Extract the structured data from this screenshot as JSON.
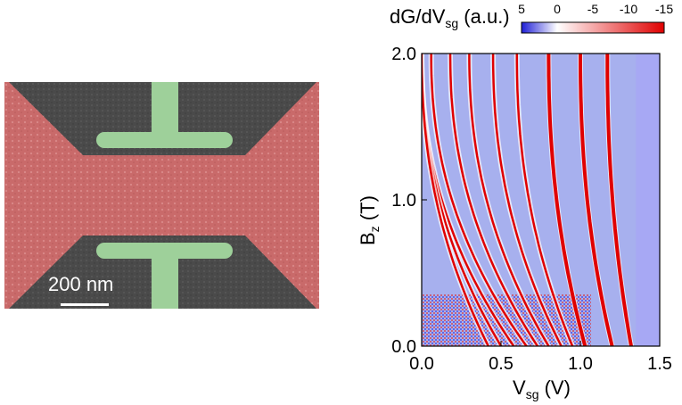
{
  "sem_panel": {
    "scale_bar_label": "200 nm",
    "colors": {
      "background": "#4a4a4a",
      "channel": "#c96a6a",
      "gates": "#9ed09a"
    }
  },
  "chart_data": {
    "type": "heatmap",
    "xlabel": {
      "main": "V",
      "sub": "sg",
      "unit": " (V)"
    },
    "ylabel": {
      "main": "B",
      "sub": "z",
      "unit": " (T)"
    },
    "xlim": [
      0.0,
      1.5
    ],
    "ylim": [
      0.0,
      2.0
    ],
    "x_ticks": [
      "0.0",
      "0.5",
      "1.0",
      "1.5"
    ],
    "y_ticks": [
      "0.0",
      "1.0",
      "2.0"
    ],
    "colorbar": {
      "title": {
        "main": "dG/dV",
        "sub": "sg",
        "unit": " (a.u.)"
      },
      "ticks": [
        "5",
        "0",
        "-5",
        "-10",
        "-15"
      ],
      "range": [
        5,
        -15
      ],
      "colors": {
        "positive": "#1f1fd6",
        "zero": "#ffffff",
        "negative": "#e00000"
      }
    },
    "background_color": "#a7b0ee",
    "plateau_color": "#a7a8f4",
    "plateau_x": 1.35,
    "transitions": [
      {
        "v0": 1.32,
        "vtop": 1.17
      },
      {
        "v0": 1.2,
        "vtop": 1.0
      },
      {
        "v0": 1.03,
        "vtop": 0.8
      },
      {
        "v0": 0.95,
        "vtop": 0.6
      },
      {
        "v0": 0.88,
        "vtop": 0.45
      },
      {
        "v0": 0.8,
        "vtop": 0.3
      },
      {
        "v0": 0.73,
        "vtop": 0.18
      },
      {
        "v0": 0.66,
        "vtop": 0.06
      },
      {
        "v0": 0.58,
        "vtop": 0.0
      },
      {
        "v0": 0.5,
        "vtop": 0.0
      },
      {
        "v0": 0.42,
        "vtop": 0.0
      }
    ]
  }
}
